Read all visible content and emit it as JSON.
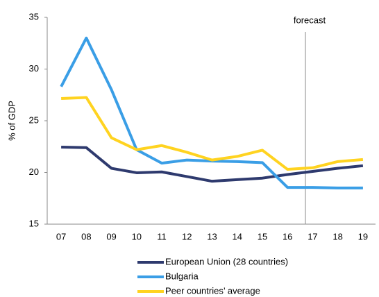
{
  "chart_data": {
    "type": "line",
    "y_label": "% of GDP",
    "annotation": "forecast",
    "categories": [
      "07",
      "08",
      "09",
      "10",
      "11",
      "12",
      "13",
      "14",
      "15",
      "16",
      "17",
      "18",
      "19"
    ],
    "series": [
      {
        "name": "European Union (28 countries)",
        "color": "#2e3a6e",
        "values": [
          22.45,
          22.4,
          20.4,
          19.97,
          20.05,
          19.6,
          19.15,
          19.3,
          19.45,
          19.8,
          20.1,
          20.4,
          20.65
        ]
      },
      {
        "name": "Bulgaria",
        "color": "#3a9ee6",
        "values": [
          28.3,
          33.0,
          28.0,
          22.2,
          20.9,
          21.2,
          21.1,
          21.05,
          20.95,
          18.55,
          18.55,
          18.5,
          18.5
        ]
      },
      {
        "name": "Peer countries’ average",
        "color": "#ffd320",
        "values": [
          27.15,
          27.25,
          23.35,
          22.2,
          22.6,
          21.95,
          21.2,
          21.55,
          22.15,
          20.3,
          20.45,
          21.05,
          21.25
        ]
      }
    ],
    "ylim": [
      15,
      35
    ],
    "yticks": [
      15,
      20,
      25,
      30,
      35
    ],
    "grid": false
  }
}
